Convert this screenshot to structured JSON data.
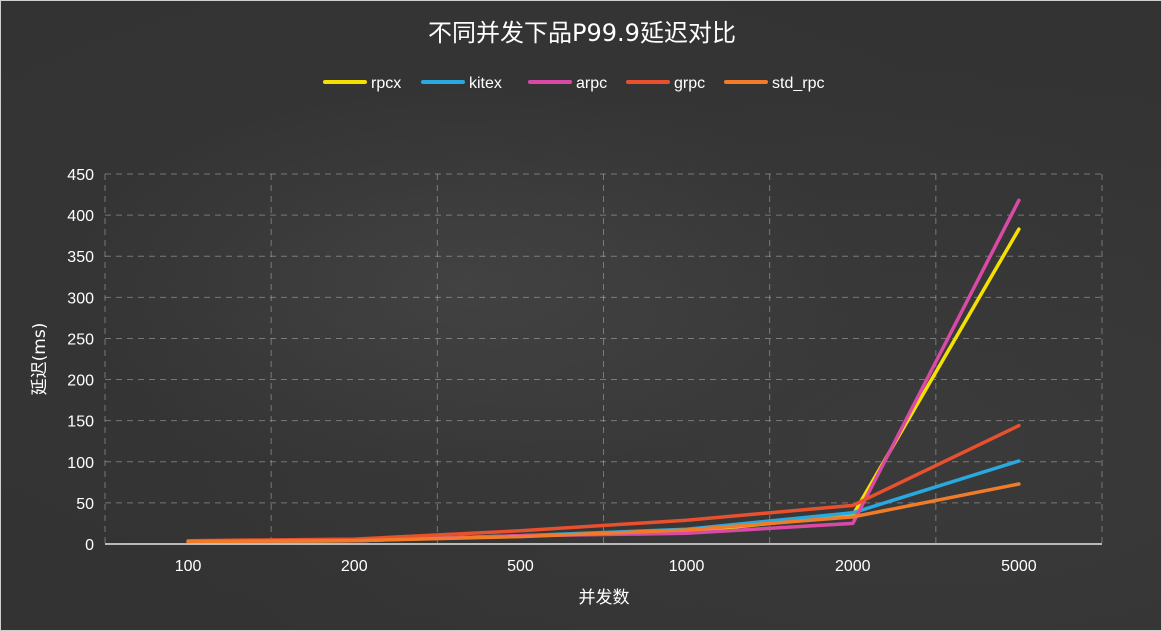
{
  "chart_data": {
    "type": "line",
    "title": "不同并发下品P99.9延迟对比",
    "xlabel": "并发数",
    "ylabel": "延迟(ms)",
    "categories": [
      "100",
      "200",
      "500",
      "1000",
      "2000",
      "5000"
    ],
    "ylim": [
      0,
      450
    ],
    "yticks": [
      0,
      50,
      100,
      150,
      200,
      250,
      300,
      350,
      400,
      450
    ],
    "grid": true,
    "legend_position": "top-center",
    "series": [
      {
        "name": "rpcx",
        "color": "#f5e100",
        "values": [
          3,
          4,
          10,
          15,
          35,
          383
        ]
      },
      {
        "name": "kitex",
        "color": "#2aa8e0",
        "values": [
          3,
          4,
          10,
          18,
          38,
          101
        ]
      },
      {
        "name": "arpc",
        "color": "#d94aa6",
        "values": [
          3,
          4,
          10,
          13,
          25,
          418
        ]
      },
      {
        "name": "grpc",
        "color": "#e8502e",
        "values": [
          4,
          6,
          16,
          29,
          47,
          144
        ]
      },
      {
        "name": "std_rpc",
        "color": "#f07c2a",
        "values": [
          3,
          4,
          9,
          17,
          33,
          73
        ]
      }
    ]
  }
}
